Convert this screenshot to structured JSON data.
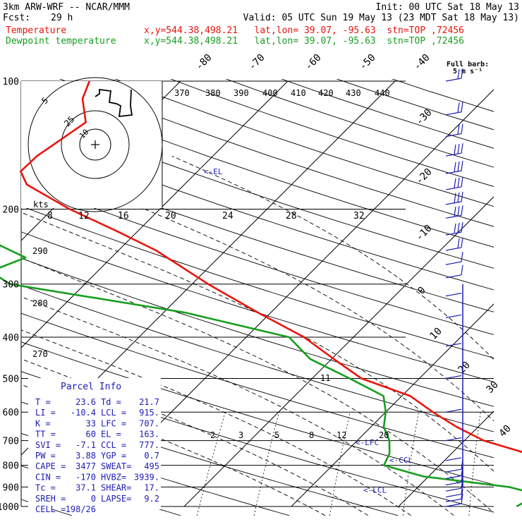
{
  "header": {
    "model": "3km ARW-WRF -- NCAR/MMM",
    "init": "Init: 00 UTC Sat 18 May 13",
    "fcst_label": "Fcst:",
    "fcst_value": "29 h",
    "valid": "Valid: 05 UTC Sun 19 May 13 (23 MDT Sat 18 May 13)",
    "temp_label": "Temperature",
    "temp_loc": "x,y=544.38,498.21   lat,lon= 39.07, -95.63  stn=TOP ,72456",
    "dew_label": "Dewpoint temperature",
    "dew_loc": "x,y=544.38,498.21   lat,lon= 39.07, -95.63  stn=TOP ,72456"
  },
  "colors": {
    "temperature": "#e8150c",
    "dewpoint": "#179e1e",
    "text_blue": "#1c1cb4"
  },
  "hodograph": {
    "units": "kts",
    "ring_labels": [
      "5",
      "25",
      "10"
    ],
    "trace": [
      [
        0,
        -68
      ],
      [
        6,
        -72
      ],
      [
        6,
        -78
      ],
      [
        22,
        -76
      ],
      [
        20,
        -60
      ],
      [
        30,
        -58
      ],
      [
        36,
        -55
      ],
      [
        34,
        -40
      ],
      [
        52,
        -42
      ],
      [
        50,
        -55
      ],
      [
        51,
        -78
      ]
    ]
  },
  "wind_barb_legend": {
    "label": "Full barb:",
    "value": "5 m s⁻¹"
  },
  "parcel_info": {
    "title": "Parcel Info",
    "rows": [
      [
        "T  =",
        "23.6",
        "Td =",
        "21.7"
      ],
      [
        "LI =",
        "-10.4",
        "LCL =",
        "915."
      ],
      [
        "K  =",
        "33",
        "LFC =",
        "707."
      ],
      [
        "TT =",
        "60",
        "EL  =",
        "163."
      ],
      [
        "SVI =",
        "-7.1",
        "CCL =",
        "777."
      ],
      [
        "PW  =",
        "3.88",
        "YGP =",
        "0.7"
      ],
      [
        "CAPE =",
        "3477",
        "SWEAT=",
        "495"
      ],
      [
        "CIN  =",
        "-170",
        "HVBZ=",
        "3939."
      ],
      [
        "Tc  =",
        "37.1",
        "SHEAR=",
        "17."
      ],
      [
        "SREH =",
        "0",
        "LAPSE=",
        "9.2"
      ],
      [
        "CELL =",
        "198/26",
        "",
        ""
      ]
    ]
  },
  "level_markers": [
    {
      "label": "<-EL",
      "p": 163
    },
    {
      "label": "<-LFC",
      "p": 707
    },
    {
      "label": "<-CCL",
      "p": 777
    },
    {
      "label": "<-LCL",
      "p": 915
    }
  ],
  "chart_data": {
    "type": "line",
    "title": "",
    "ylabel": "",
    "y_scale": "log-pressure",
    "ylim": [
      1000,
      100
    ],
    "pressure_ticks": [
      100,
      200,
      300,
      400,
      500,
      600,
      700,
      800,
      900,
      1000
    ],
    "isotherm_labels": [
      "-80",
      "-70",
      "-60",
      "-50",
      "-40",
      "-30",
      "-20",
      "-10",
      "0",
      "10",
      "20",
      "30",
      "40"
    ],
    "theta_labels": [
      "370",
      "380",
      "390",
      "400",
      "410",
      "420",
      "430",
      "440"
    ],
    "theta_left_labels": [
      "290",
      "280",
      "270"
    ],
    "mixing_ratio_labels": [
      "2",
      "3",
      "5",
      "8",
      "12",
      "20"
    ],
    "upper_scale_labels": [
      "8",
      "12",
      "16",
      "20",
      "24",
      "28",
      "32"
    ],
    "moist_adiabat_label": "11",
    "series": [
      {
        "name": "Temperature",
        "points": [
          [
            1000,
            22.7
          ],
          [
            950,
            23.6
          ],
          [
            925,
            25.2
          ],
          [
            900,
            23.2
          ],
          [
            850,
            22.4
          ],
          [
            800,
            21.0
          ],
          [
            750,
            17.0
          ],
          [
            700,
            11.8
          ],
          [
            650,
            8.0
          ],
          [
            600,
            4.4
          ],
          [
            550,
            0.8
          ],
          [
            500,
            -5.4
          ],
          [
            450,
            -9.8
          ],
          [
            400,
            -14.6
          ],
          [
            350,
            -21.2
          ],
          [
            300,
            -28.5
          ],
          [
            250,
            -36.5
          ],
          [
            225,
            -42.0
          ],
          [
            200,
            -48.4
          ],
          [
            175,
            -54.7
          ],
          [
            163,
            -56.5
          ],
          [
            150,
            -56.4
          ],
          [
            125,
            -55.0
          ],
          [
            110,
            -57.5
          ],
          [
            100,
            -58.5
          ]
        ]
      },
      {
        "name": "Dewpoint temperature",
        "points": [
          [
            1000,
            21.0
          ],
          [
            950,
            21.7
          ],
          [
            925,
            20.8
          ],
          [
            900,
            18.5
          ],
          [
            850,
            9.5
          ],
          [
            800,
            4.8
          ],
          [
            750,
            4.2
          ],
          [
            700,
            3.0
          ],
          [
            650,
            1.2
          ],
          [
            600,
            0.0
          ],
          [
            550,
            -1.7
          ],
          [
            500,
            -6.5
          ],
          [
            450,
            -12.0
          ],
          [
            400,
            -16.0
          ],
          [
            350,
            -28.0
          ],
          [
            300,
            -47.0
          ],
          [
            280,
            -50.0
          ],
          [
            260,
            -48.0
          ],
          [
            230,
            -54.5
          ],
          [
            200,
            -62.0
          ],
          [
            175,
            -67.0
          ],
          [
            150,
            -71.0
          ],
          [
            140,
            -68.5
          ],
          [
            120,
            -76.0
          ],
          [
            110,
            -76.5
          ],
          [
            100,
            -75.5
          ]
        ]
      }
    ],
    "wind_profile": [
      {
        "p": 100,
        "barbs": 2
      },
      {
        "p": 120,
        "barbs": 2
      },
      {
        "p": 135,
        "barbs": 2
      },
      {
        "p": 150,
        "barbs": 3
      },
      {
        "p": 165,
        "barbs": 3
      },
      {
        "p": 180,
        "barbs": 3
      },
      {
        "p": 195,
        "barbs": 3
      },
      {
        "p": 210,
        "barbs": 3
      },
      {
        "p": 230,
        "barbs": 3
      },
      {
        "p": 250,
        "barbs": 2
      },
      {
        "p": 270,
        "barbs": 1
      },
      {
        "p": 290,
        "barbs": 1
      },
      {
        "p": 320,
        "barbs": 0
      },
      {
        "p": 360,
        "barbs": 0
      },
      {
        "p": 420,
        "barbs": 0
      },
      {
        "p": 500,
        "barbs": 0
      },
      {
        "p": 600,
        "barbs": 0
      },
      {
        "p": 700,
        "barbs": 0
      },
      {
        "p": 780,
        "barbs": 0
      },
      {
        "p": 830,
        "barbs": 1
      },
      {
        "p": 860,
        "barbs": 1
      },
      {
        "p": 890,
        "barbs": 1
      },
      {
        "p": 920,
        "barbs": 1
      },
      {
        "p": 950,
        "barbs": 1
      },
      {
        "p": 975,
        "barbs": 1
      },
      {
        "p": 1000,
        "barbs": 1
      }
    ]
  }
}
